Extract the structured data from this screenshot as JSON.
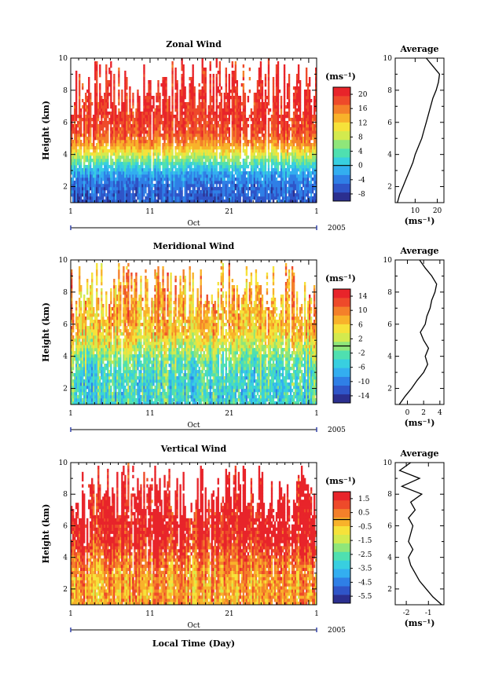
{
  "palette": [
    "#2b2f8f",
    "#2f55c8",
    "#2f7fe6",
    "#33aef0",
    "#38cfe0",
    "#4fe0b0",
    "#8fe67a",
    "#d3ea4e",
    "#f6e23a",
    "#f8b22a",
    "#f4802a",
    "#ee4a2a",
    "#e8242a"
  ],
  "chart_data": [
    {
      "type": "heatmap",
      "title": "Zonal Wind",
      "ylabel": "Height (km)",
      "xlabel": "",
      "ylim": [
        1,
        10
      ],
      "yticks": [
        "2",
        "4",
        "6",
        "8",
        "10"
      ],
      "xticks": [
        "1",
        "11",
        "21",
        "1"
      ],
      "month_label": "Oct",
      "year_label": "2005",
      "colorbar": {
        "unit": "(ms⁻¹)",
        "labels": [
          "20",
          "16",
          "12",
          "8",
          "4",
          "0",
          "-4",
          "-8"
        ],
        "vmin": -10,
        "vmax": 22
      },
      "pattern": {
        "low": -6,
        "high": 20,
        "transition_km": 3.8,
        "noise": 7
      },
      "profile": {
        "title": "Average",
        "xlabel": "(ms⁻¹)",
        "xticks": [
          "10",
          "20"
        ],
        "xlim": [
          1,
          23
        ],
        "heights": [
          1.0,
          1.5,
          2.0,
          2.5,
          3.0,
          3.5,
          4.0,
          4.5,
          5.0,
          5.5,
          6.0,
          6.5,
          7.0,
          7.5,
          8.0,
          8.5,
          9.0,
          9.5,
          10.0
        ],
        "values": [
          2,
          3,
          4.5,
          6,
          7.5,
          9,
          10,
          11.5,
          13,
          14,
          15,
          16,
          17,
          18,
          19.5,
          20.5,
          21,
          18,
          15
        ]
      }
    },
    {
      "type": "heatmap",
      "title": "Meridional Wind",
      "ylabel": "Height (km)",
      "xlabel": "",
      "ylim": [
        1,
        10
      ],
      "yticks": [
        "2",
        "4",
        "6",
        "8",
        "10"
      ],
      "xticks": [
        "1",
        "11",
        "21",
        "1"
      ],
      "month_label": "Oct",
      "year_label": "2005",
      "colorbar": {
        "unit": "(ms⁻¹)",
        "labels": [
          "14",
          "10",
          "6",
          "2",
          "-2",
          "-6",
          "-10",
          "-14"
        ],
        "vmin": -16,
        "vmax": 16
      },
      "pattern": {
        "low": -4,
        "high": 8,
        "transition_km": 4.5,
        "noise": 12
      },
      "profile": {
        "title": "Average",
        "xlabel": "(ms⁻¹)",
        "xticks": [
          "0",
          "2",
          "4"
        ],
        "xlim": [
          -1.5,
          4.5
        ],
        "heights": [
          1.0,
          1.5,
          2.0,
          2.5,
          3.0,
          3.5,
          4.0,
          4.5,
          5.0,
          5.5,
          6.0,
          6.5,
          7.0,
          7.5,
          8.0,
          8.5,
          9.0,
          9.5,
          10.0
        ],
        "values": [
          -1,
          -0.3,
          0.5,
          1.2,
          2.0,
          2.5,
          2.2,
          2.6,
          2.0,
          1.6,
          2.2,
          2.4,
          2.8,
          3.0,
          3.4,
          3.6,
          3.0,
          2.2,
          1.5
        ]
      }
    },
    {
      "type": "heatmap",
      "title": "Vertical Wind",
      "ylabel": "Height (km)",
      "xlabel": "Local Time (Day)",
      "ylim": [
        1,
        10
      ],
      "yticks": [
        "2",
        "4",
        "6",
        "8",
        "10"
      ],
      "xticks": [
        "1",
        "11",
        "21",
        "1"
      ],
      "month_label": "Oct",
      "year_label": "2005",
      "colorbar": {
        "unit": "(ms⁻¹)",
        "labels": [
          "1.5",
          "0.5",
          "-0.5",
          "-1.5",
          "-2.5",
          "-3.5",
          "-4.5",
          "-5.5"
        ],
        "vmin": -6,
        "vmax": 2
      },
      "pattern": {
        "low": 0,
        "high": 2,
        "transition_km": 4.2,
        "noise": 3
      },
      "profile": {
        "title": "Average",
        "xlabel": "(ms⁻¹)",
        "xticks": [
          "-2",
          "-1"
        ],
        "xlim": [
          -2.5,
          -0.3
        ],
        "heights": [
          1.0,
          1.5,
          2.0,
          2.5,
          3.0,
          3.5,
          4.0,
          4.5,
          5.0,
          5.5,
          6.0,
          6.5,
          7.0,
          7.5,
          8.0,
          8.5,
          9.0,
          9.5,
          10.0
        ],
        "values": [
          -0.4,
          -0.8,
          -1.1,
          -1.4,
          -1.6,
          -1.8,
          -1.9,
          -1.7,
          -1.9,
          -1.8,
          -1.7,
          -1.9,
          -1.6,
          -1.8,
          -1.3,
          -2.2,
          -1.4,
          -2.3,
          -1.8
        ]
      }
    }
  ]
}
